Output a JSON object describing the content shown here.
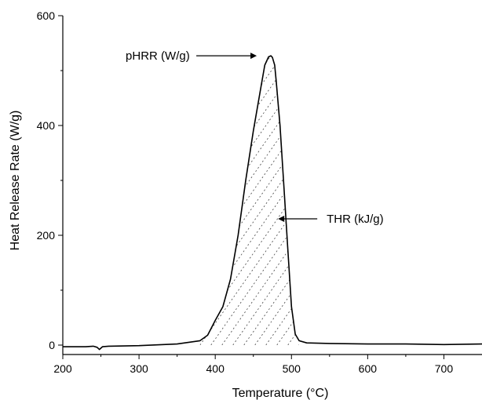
{
  "chart_data": {
    "type": "line",
    "xlabel": "Temperature (°C)",
    "ylabel": "Heat Release Rate (W/g)",
    "xlim": [
      200,
      750
    ],
    "ylim": [
      0,
      600
    ],
    "x_ticks": [
      200,
      300,
      400,
      500,
      600,
      700
    ],
    "y_ticks": [
      0,
      200,
      400,
      600
    ],
    "grid": false,
    "series": [
      {
        "x": [
          200,
          230,
          240,
          245,
          248,
          252,
          260,
          300,
          350,
          380,
          390,
          400,
          410,
          420,
          430,
          440,
          450,
          460,
          465,
          470,
          473,
          475,
          478,
          480,
          485,
          490,
          495,
          500,
          505,
          510,
          520,
          550,
          600,
          650,
          700,
          750
        ],
        "y": [
          -3,
          -3,
          -2,
          -4,
          -8,
          -3,
          -2,
          -1,
          2,
          8,
          18,
          45,
          70,
          120,
          200,
          300,
          390,
          470,
          510,
          525,
          527,
          524,
          510,
          480,
          400,
          290,
          180,
          70,
          20,
          8,
          4,
          3,
          2,
          2,
          1,
          2
        ],
        "color": "#000000"
      }
    ],
    "shaded_region": {
      "label": "THR (kJ/g)",
      "pattern": "diagonal dashed hatch"
    },
    "annotations": [
      {
        "text": "pHRR (W/g)",
        "x": 473,
        "y": 527,
        "arrow": "points-right-to-peak"
      },
      {
        "text": "THR (kJ/g)",
        "x": 470,
        "y": 230,
        "arrow": "points-left-to-area"
      }
    ]
  }
}
